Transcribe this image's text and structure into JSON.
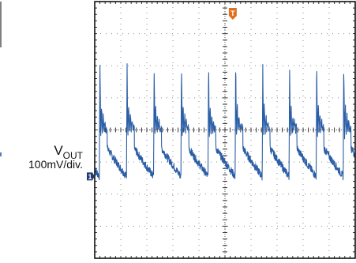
{
  "chart_data": {
    "type": "line",
    "title": "",
    "xlabel": "",
    "ylabel": "",
    "grid": true,
    "grid_divisions": {
      "x": 10,
      "y": 8
    },
    "xlim": [
      0,
      10
    ],
    "ylim": [
      -4,
      4
    ],
    "trigger_marker": "T",
    "trigger_position_div": 5.3,
    "colors": {
      "trace": "#2b5ea6",
      "grid_dots": "#8a8a8a",
      "frame": "#000000",
      "trigger_marker": "#e07020",
      "channel_marker": "#223a70"
    },
    "channel": {
      "marker": "1",
      "name_main": "V",
      "name_sub": "OUT",
      "scale": "100mV/div.",
      "offset_div": -0.6
    },
    "series": [
      {
        "pulse_times_div": [
          0.18,
          1.22,
          2.26,
          3.31,
          4.35,
          5.39,
          6.43,
          7.46,
          8.5,
          9.54
        ],
        "spike_peak_div": 2.1,
        "ringing_peak_div": 0.35,
        "decay_start_div": -0.1,
        "decay_end_div": -1.45,
        "baseline_noise_div": 0.12
      }
    ]
  }
}
